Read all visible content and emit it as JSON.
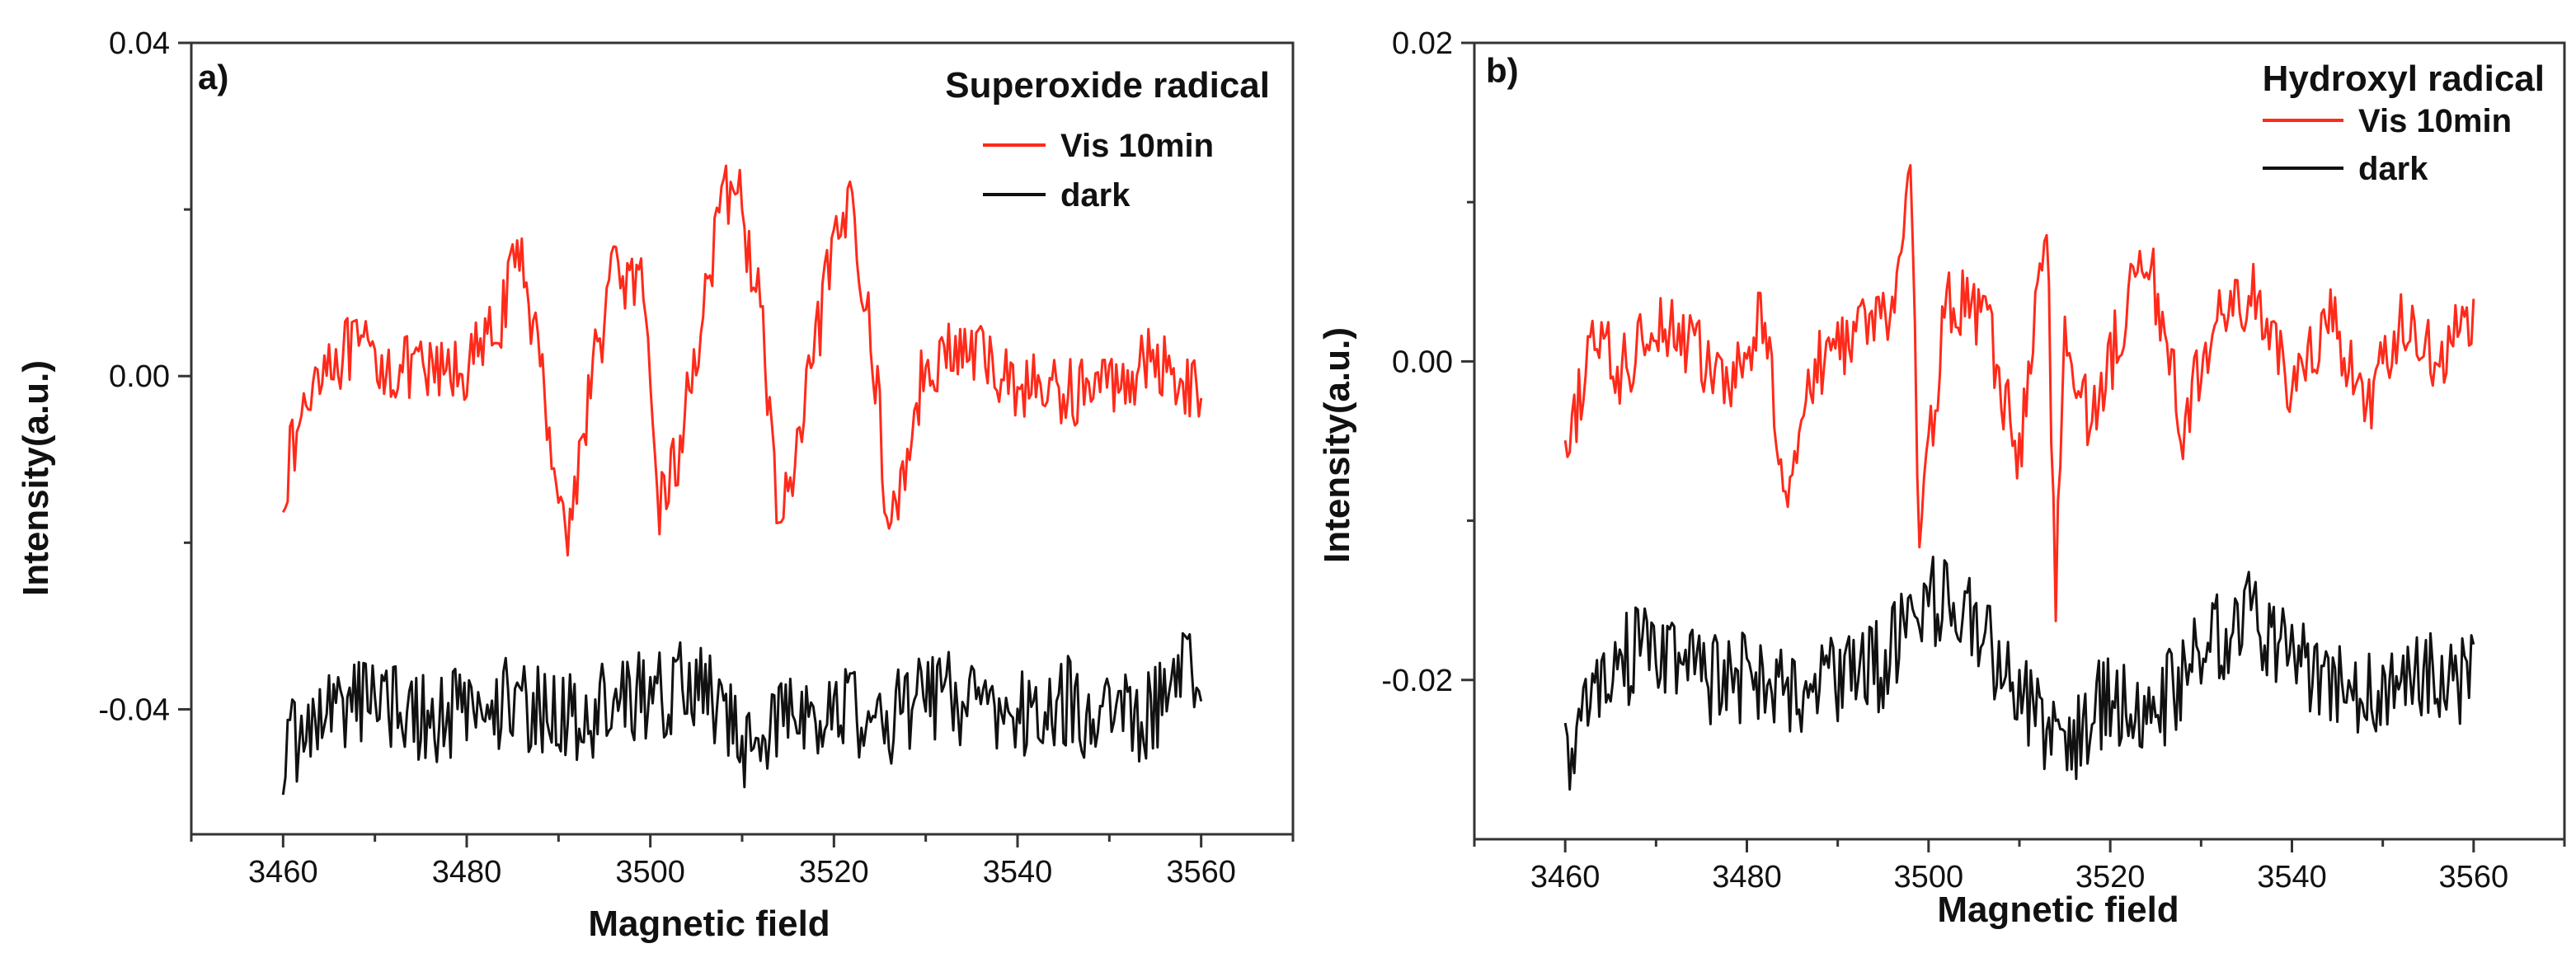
{
  "colors": {
    "vis": "#ff2a1a",
    "dark": "#111111",
    "axis": "#333333"
  },
  "chart_data": [
    {
      "type": "line",
      "panel_label": "a)",
      "title": "Superoxide radical",
      "xlabel": "Magnetic field",
      "ylabel": "Intensity(a.u.)",
      "xlim": [
        3450,
        3570
      ],
      "ylim": [
        -0.055,
        0.04
      ],
      "xticks": [
        3460,
        3480,
        3500,
        3520,
        3540,
        3560
      ],
      "yticks": [
        -0.04,
        0.0,
        0.04
      ],
      "ytick_labels": [
        "-0.04",
        "0.00",
        "0.04"
      ],
      "legend_position": "top-right",
      "series": [
        {
          "name": "Vis 10min",
          "x": [
            3460,
            3464,
            3468,
            3472,
            3476,
            3480,
            3483,
            3486,
            3489,
            3491,
            3493,
            3496,
            3499,
            3501,
            3503,
            3506,
            3509,
            3512,
            3514,
            3516,
            3519,
            3522,
            3525,
            3526,
            3530,
            3535,
            3540,
            3545,
            3550,
            3555,
            3560
          ],
          "y": [
            -0.013,
            0.002,
            0.003,
            0.001,
            0.0,
            0.001,
            0.005,
            0.015,
            -0.006,
            -0.02,
            -0.004,
            0.013,
            0.01,
            -0.015,
            -0.01,
            0.01,
            0.025,
            0.008,
            -0.018,
            -0.01,
            0.01,
            0.022,
            -0.005,
            -0.02,
            0.002,
            0.003,
            -0.001,
            -0.002,
            -0.001,
            0.002,
            -0.002
          ]
        },
        {
          "name": "dark",
          "x": [
            3460,
            3465,
            3470,
            3475,
            3480,
            3485,
            3490,
            3495,
            3500,
            3505,
            3510,
            3515,
            3520,
            3525,
            3530,
            3535,
            3540,
            3545,
            3550,
            3555,
            3560
          ],
          "y": [
            -0.045,
            -0.04,
            -0.038,
            -0.041,
            -0.04,
            -0.039,
            -0.041,
            -0.04,
            -0.038,
            -0.037,
            -0.044,
            -0.041,
            -0.039,
            -0.042,
            -0.038,
            -0.039,
            -0.041,
            -0.039,
            -0.042,
            -0.04,
            -0.034
          ]
        }
      ]
    },
    {
      "type": "line",
      "panel_label": "b)",
      "title": "Hydroxyl radical",
      "xlabel": "Magnetic field",
      "ylabel": "Intensity(a.u.)",
      "xlim": [
        3450,
        3570
      ],
      "ylim": [
        -0.03,
        0.02
      ],
      "xticks": [
        3460,
        3480,
        3500,
        3520,
        3540,
        3560
      ],
      "yticks": [
        -0.02,
        0.0,
        0.02
      ],
      "ytick_labels": [
        "-0.02",
        "0.00",
        "0.02"
      ],
      "legend_position": "top-right",
      "series": [
        {
          "name": "Vis 10min",
          "x": [
            3460,
            3463,
            3466,
            3470,
            3474,
            3478,
            3482,
            3484,
            3488,
            3492,
            3496,
            3498,
            3499,
            3502,
            3506,
            3510,
            3513,
            3514,
            3515,
            3518,
            3522,
            3524,
            3528,
            3532,
            3536,
            3540,
            3544,
            3548,
            3552,
            3556,
            3560
          ],
          "y": [
            -0.007,
            0.002,
            -0.001,
            0.003,
            0.001,
            -0.002,
            0.003,
            -0.008,
            0.0,
            0.002,
            0.003,
            0.012,
            -0.011,
            0.004,
            0.003,
            -0.006,
            0.009,
            -0.015,
            0.002,
            -0.004,
            0.004,
            0.007,
            -0.004,
            0.003,
            0.004,
            -0.002,
            0.003,
            -0.003,
            0.002,
            0.0,
            0.003
          ]
        },
        {
          "name": "dark",
          "x": [
            3460,
            3465,
            3470,
            3475,
            3480,
            3485,
            3490,
            3495,
            3500,
            3505,
            3510,
            3515,
            3520,
            3525,
            3530,
            3535,
            3540,
            3545,
            3550,
            3555,
            3560
          ],
          "y": [
            -0.025,
            -0.019,
            -0.018,
            -0.02,
            -0.02,
            -0.021,
            -0.02,
            -0.019,
            -0.015,
            -0.016,
            -0.021,
            -0.024,
            -0.021,
            -0.022,
            -0.018,
            -0.016,
            -0.019,
            -0.02,
            -0.021,
            -0.02,
            -0.02
          ]
        }
      ]
    }
  ]
}
